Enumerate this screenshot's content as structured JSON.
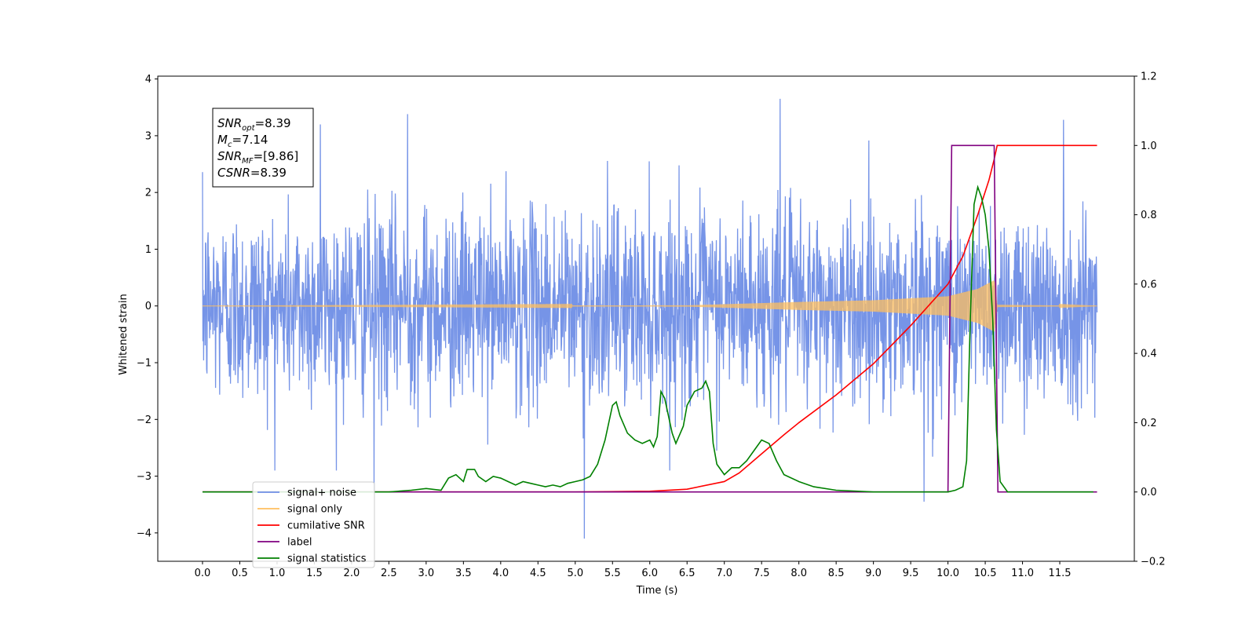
{
  "chart_data": {
    "type": "line",
    "title": "",
    "xlabel": "Time (s)",
    "ylabel": "Whitened strain",
    "xlim": [
      -0.6,
      12.5
    ],
    "ylim": [
      -4.5,
      4.05
    ],
    "y2lim": [
      -0.2,
      1.2
    ],
    "x_ticks": [
      0.0,
      0.5,
      1.0,
      1.5,
      2.0,
      2.5,
      3.0,
      3.5,
      4.0,
      4.5,
      5.0,
      5.5,
      6.0,
      6.5,
      7.0,
      7.5,
      8.0,
      8.5,
      9.0,
      9.5,
      10.0,
      10.5,
      11.0,
      11.5
    ],
    "x_tick_labels": [
      "0.0",
      "0.5",
      "1.0",
      "1.5",
      "2.0",
      "2.5",
      "3.0",
      "3.5",
      "4.0",
      "4.5",
      "5.0",
      "5.5",
      "6.0",
      "6.5",
      "7.0",
      "7.5",
      "8.0",
      "8.5",
      "9.0",
      "9.5",
      "10.0",
      "10.5",
      "11.0",
      "11.5"
    ],
    "y_ticks": [
      4,
      3,
      2,
      1,
      0,
      -1,
      -2,
      -3,
      -4
    ],
    "y_tick_labels": [
      "4",
      "3",
      "2",
      "1",
      "0",
      "−1",
      "−2",
      "−3",
      "−4"
    ],
    "y2_ticks": [
      1.2,
      1.0,
      0.8,
      0.6,
      0.4,
      0.2,
      0.0,
      -0.2
    ],
    "y2_tick_labels": [
      "1.2",
      "1.0",
      "0.8",
      "0.6",
      "0.4",
      "0.2",
      "0.0",
      "−0.2"
    ],
    "grid": false,
    "legend_position": "lower-left",
    "annotation": {
      "lines": [
        {
          "base": "SNR",
          "sub": "opt",
          "value": "=8.39"
        },
        {
          "base": "M",
          "sub": "c",
          "value": "=7.14"
        },
        {
          "base": "SNR",
          "sub": "MF",
          "value": "=[9.86]"
        },
        {
          "base": "CSNR",
          "sub": "",
          "value": "=8.39"
        }
      ]
    },
    "series": [
      {
        "name": "signal+ noise",
        "axis": "left",
        "color": "#6f8ee6",
        "x_range": [
          0.0,
          12.0
        ],
        "noise_std": 0.85,
        "spikes": [
          [
            5.12,
            -4.1
          ],
          [
            7.75,
            3.65
          ],
          [
            9.68,
            -3.45
          ],
          [
            2.75,
            3.38
          ],
          [
            1.58,
            3.2
          ],
          [
            11.55,
            3.28
          ],
          [
            2.3,
            -3.25
          ]
        ]
      },
      {
        "name": "signal only",
        "axis": "left",
        "color": "#ffbf5f",
        "envelope": [
          [
            0.0,
            0.0
          ],
          [
            6.5,
            0.01
          ],
          [
            7.0,
            0.03
          ],
          [
            8.0,
            0.07
          ],
          [
            9.0,
            0.1
          ],
          [
            10.0,
            0.17
          ],
          [
            10.4,
            0.3
          ],
          [
            10.62,
            0.45
          ],
          [
            10.66,
            0.02
          ],
          [
            12.0,
            0.0
          ]
        ]
      },
      {
        "name": "cumilative SNR",
        "axis": "right",
        "color": "#ff0000",
        "x": [
          0.0,
          5.0,
          6.0,
          6.5,
          7.0,
          7.2,
          7.5,
          7.8,
          8.0,
          8.5,
          9.0,
          9.5,
          10.0,
          10.2,
          10.4,
          10.55,
          10.62,
          10.66,
          11.0,
          12.0
        ],
        "y": [
          0.0,
          0.0,
          0.002,
          0.008,
          0.03,
          0.055,
          0.11,
          0.165,
          0.2,
          0.28,
          0.37,
          0.48,
          0.6,
          0.68,
          0.8,
          0.9,
          0.96,
          1.0,
          1.0,
          1.0
        ]
      },
      {
        "name": "label",
        "axis": "right",
        "color": "#800080",
        "x": [
          0.0,
          10.0,
          10.05,
          10.62,
          10.67,
          12.0
        ],
        "y": [
          0.0,
          0.0,
          1.0,
          1.0,
          0.0,
          0.0
        ]
      },
      {
        "name": "signal statistics",
        "axis": "right",
        "color": "#008000",
        "x": [
          0.0,
          2.5,
          2.8,
          3.0,
          3.2,
          3.3,
          3.4,
          3.5,
          3.55,
          3.65,
          3.7,
          3.8,
          3.9,
          4.0,
          4.1,
          4.2,
          4.3,
          4.4,
          4.5,
          4.6,
          4.7,
          4.8,
          4.9,
          5.0,
          5.1,
          5.2,
          5.3,
          5.4,
          5.5,
          5.55,
          5.6,
          5.7,
          5.8,
          5.9,
          6.0,
          6.05,
          6.1,
          6.15,
          6.2,
          6.3,
          6.35,
          6.45,
          6.5,
          6.6,
          6.7,
          6.75,
          6.8,
          6.85,
          6.9,
          7.0,
          7.1,
          7.2,
          7.3,
          7.4,
          7.5,
          7.6,
          7.7,
          7.8,
          8.0,
          8.2,
          8.5,
          9.0,
          10.0,
          10.1,
          10.15,
          10.2,
          10.25,
          10.3,
          10.35,
          10.4,
          10.45,
          10.5,
          10.55,
          10.6,
          10.65,
          10.7,
          10.8,
          11.0,
          11.95
        ],
        "y": [
          0.0,
          0.0,
          0.005,
          0.01,
          0.005,
          0.04,
          0.05,
          0.03,
          0.065,
          0.065,
          0.045,
          0.03,
          0.045,
          0.04,
          0.03,
          0.02,
          0.03,
          0.025,
          0.02,
          0.015,
          0.02,
          0.015,
          0.025,
          0.03,
          0.035,
          0.045,
          0.08,
          0.15,
          0.25,
          0.26,
          0.22,
          0.17,
          0.15,
          0.14,
          0.15,
          0.13,
          0.16,
          0.29,
          0.27,
          0.17,
          0.14,
          0.19,
          0.25,
          0.29,
          0.3,
          0.32,
          0.29,
          0.14,
          0.08,
          0.05,
          0.07,
          0.07,
          0.09,
          0.12,
          0.15,
          0.14,
          0.09,
          0.05,
          0.03,
          0.015,
          0.005,
          0.0,
          0.0,
          0.005,
          0.01,
          0.015,
          0.09,
          0.5,
          0.83,
          0.88,
          0.85,
          0.8,
          0.7,
          0.5,
          0.18,
          0.03,
          0.0,
          0.0,
          0.0
        ]
      }
    ],
    "legend": [
      {
        "label": "signal+ noise",
        "color": "#6f8ee6"
      },
      {
        "label": "signal only",
        "color": "#ffbf5f"
      },
      {
        "label": "cumilative SNR",
        "color": "#ff0000"
      },
      {
        "label": "label",
        "color": "#800080"
      },
      {
        "label": "signal statistics",
        "color": "#008000"
      }
    ]
  }
}
